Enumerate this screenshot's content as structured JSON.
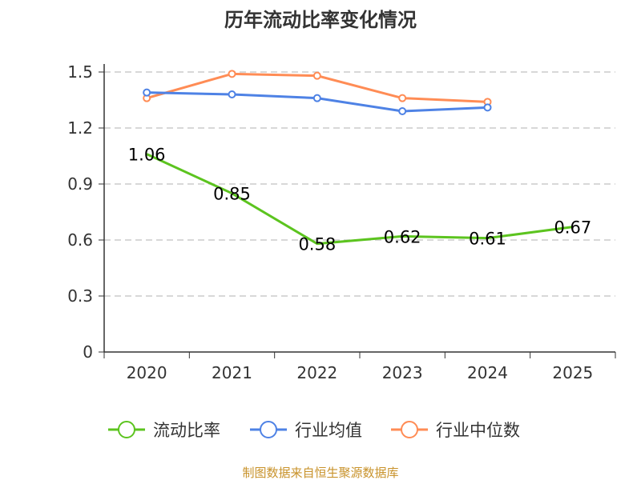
{
  "chart_data": {
    "type": "line",
    "title": "历年流动比率变化情况",
    "categories": [
      "2020",
      "2021",
      "2022",
      "2023",
      "2024",
      "2025"
    ],
    "ylim": [
      0,
      1.5
    ],
    "yticks": [
      "0",
      "0.3",
      "0.6",
      "0.9",
      "1.2",
      "1.5"
    ],
    "grid": true,
    "legend_position": "bottom",
    "series": [
      {
        "name": "流动比率",
        "color": "#5cc41f",
        "values": [
          1.06,
          0.85,
          0.58,
          0.62,
          0.61,
          0.67
        ],
        "labels": [
          "1.06",
          "0.85",
          "0.58",
          "0.62",
          "0.61",
          "0.67"
        ]
      },
      {
        "name": "行业均值",
        "color": "#4e82e5",
        "values": [
          1.39,
          1.38,
          1.36,
          1.29,
          1.31,
          null
        ]
      },
      {
        "name": "行业中位数",
        "color": "#ff8c55",
        "values": [
          1.36,
          1.49,
          1.48,
          1.36,
          1.34,
          null
        ]
      }
    ]
  },
  "footer": {
    "source": "制图数据来自恒生聚源数据库",
    "color": "#c8922a"
  }
}
